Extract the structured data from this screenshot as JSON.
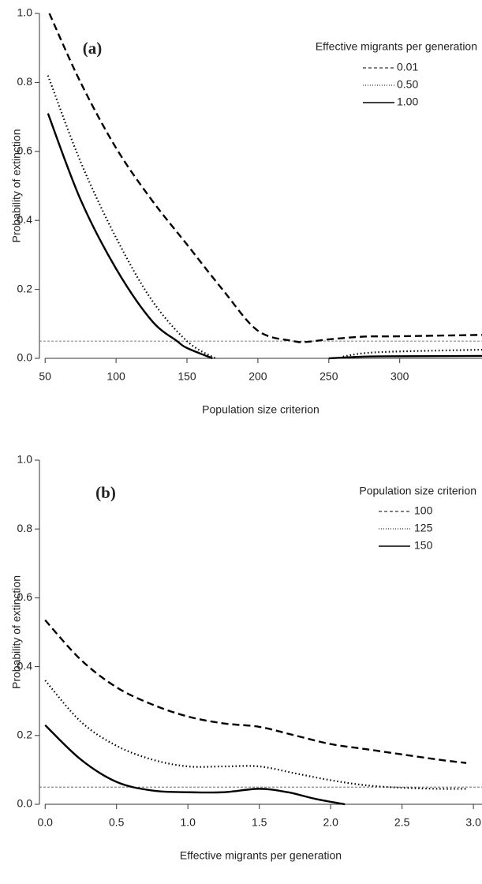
{
  "chart_data": [
    {
      "type": "line",
      "annotation": "(a)",
      "xlabel": "Population size criterion",
      "ylabel": "Probability of extinction",
      "legend_title": "Effective migrants per generation",
      "xlim": [
        46,
        358
      ],
      "ylim": [
        0,
        1
      ],
      "xticks": [
        50,
        100,
        150,
        200,
        250,
        300
      ],
      "yticks": [
        {
          "value": 0,
          "label": "0.0"
        },
        0.2,
        0.4,
        0.6,
        0.8,
        {
          "value": 1,
          "label": "1.0"
        }
      ],
      "reference_line": 0.05,
      "series": [
        {
          "name": "0.01",
          "style": "dashed",
          "color": "#000000",
          "x": [
            53,
            75,
            100,
            125,
            150,
            175,
            200,
            225,
            235,
            250,
            275,
            300,
            358
          ],
          "values": [
            1.0,
            0.8,
            0.61,
            0.46,
            0.33,
            0.2,
            0.08,
            0.05,
            0.048,
            0.055,
            0.063,
            0.064,
            0.068
          ]
        },
        {
          "name": "0.50",
          "style": "dotted",
          "color": "#000000",
          "x": [
            52,
            75,
            100,
            125,
            150,
            170,
            210,
            260,
            275,
            300,
            358
          ],
          "values": [
            0.82,
            0.57,
            0.35,
            0.17,
            0.05,
            0.0,
            null,
            0.005,
            0.015,
            0.02,
            0.025
          ]
        },
        {
          "name": "1.00",
          "style": "solid",
          "color": "#000000",
          "x": [
            52,
            75,
            100,
            125,
            143,
            150,
            168,
            210,
            250,
            275,
            300,
            358
          ],
          "values": [
            0.71,
            0.46,
            0.26,
            0.11,
            0.05,
            0.03,
            0.0,
            null,
            0.0,
            0.005,
            0.006,
            0.007
          ]
        }
      ]
    },
    {
      "type": "line",
      "annotation": "(b)",
      "xlabel": "Effective migrants per generation",
      "ylabel": "Probability of extinction",
      "legend_title": "Population size criterion",
      "xlim": [
        -0.04,
        3.06
      ],
      "ylim": [
        0,
        1
      ],
      "xticks": [
        {
          "value": 0,
          "label": "0.0"
        },
        0.5,
        {
          "value": 1,
          "label": "1.0"
        },
        1.5,
        {
          "value": 2,
          "label": "2.0"
        },
        2.5,
        {
          "value": 3,
          "label": "3.0"
        }
      ],
      "yticks": [
        {
          "value": 0,
          "label": "0.0"
        },
        0.2,
        0.4,
        0.6,
        0.8,
        {
          "value": 1,
          "label": "1.0"
        }
      ],
      "reference_line": 0.05,
      "series": [
        {
          "name": "100",
          "style": "dashed",
          "color": "#000000",
          "x": [
            0,
            0.25,
            0.5,
            0.75,
            1.0,
            1.25,
            1.5,
            1.75,
            2.0,
            2.25,
            2.5,
            2.75,
            2.95
          ],
          "values": [
            0.535,
            0.42,
            0.34,
            0.29,
            0.255,
            0.235,
            0.225,
            0.2,
            0.175,
            0.16,
            0.145,
            0.13,
            0.12
          ]
        },
        {
          "name": "125",
          "style": "dotted",
          "color": "#000000",
          "x": [
            0,
            0.25,
            0.5,
            0.75,
            1.0,
            1.25,
            1.5,
            1.75,
            2.0,
            2.25,
            2.5,
            2.75,
            2.95
          ],
          "values": [
            0.36,
            0.24,
            0.17,
            0.13,
            0.11,
            0.11,
            0.11,
            0.09,
            0.07,
            0.055,
            0.048,
            0.045,
            0.045
          ]
        },
        {
          "name": "150",
          "style": "solid",
          "color": "#000000",
          "x": [
            0,
            0.25,
            0.5,
            0.75,
            1.0,
            1.25,
            1.5,
            1.7,
            1.9,
            2.1
          ],
          "values": [
            0.23,
            0.13,
            0.065,
            0.04,
            0.035,
            0.035,
            0.045,
            0.035,
            0.015,
            0.0
          ]
        }
      ]
    }
  ]
}
